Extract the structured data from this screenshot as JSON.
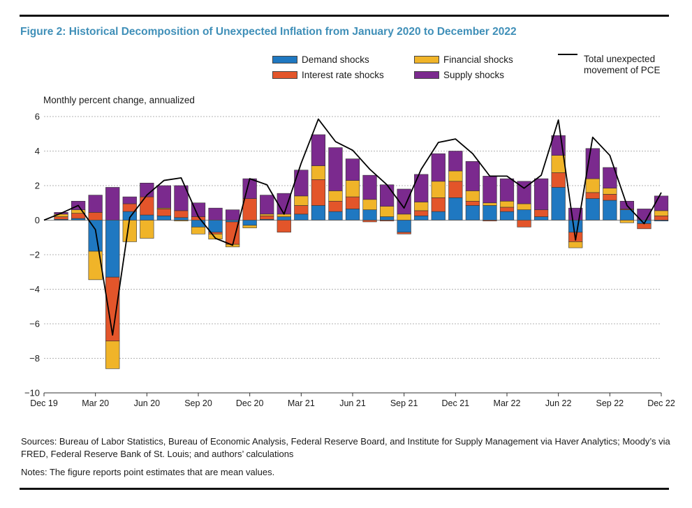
{
  "title": "Figure 2: Historical Decomposition of Unexpected Inflation from January 2020 to December 2022",
  "y_axis_title": "Monthly percent change, annualized",
  "legend": {
    "demand": "Demand shocks",
    "interest": "Interest rate shocks",
    "financial": "Financial shocks",
    "supply": "Supply shocks",
    "total": "Total unexpected movement of PCE"
  },
  "colors": {
    "demand": "#1f78c1",
    "interest": "#e3552a",
    "financial": "#f0b429",
    "supply": "#7b2a8e",
    "total": "#000000",
    "title": "#3f8fb8"
  },
  "sources": "Sources: Bureau of Labor Statistics, Bureau of Economic Analysis, Federal Reserve Board, and Institute for Supply Management via Haver Analytics; Moody’s via FRED, Federal Reserve Bank of St. Louis; and authors’ calculations",
  "notes": "Notes: The figure reports point estimates that are mean values.",
  "chart_data": {
    "type": "bar",
    "stacked": true,
    "ylim": [
      -10,
      6
    ],
    "yticks": [
      "6",
      "4",
      "2",
      "0",
      "−2",
      "−4",
      "−6",
      "−8",
      "−10"
    ],
    "ytick_values": [
      6,
      4,
      2,
      0,
      -2,
      -4,
      -6,
      -8,
      -10
    ],
    "xticks": [
      "Dec 19",
      "Mar 20",
      "Jun 20",
      "Sep 20",
      "Dec 20",
      "Mar 21",
      "Jun 21",
      "Sep 21",
      "Dec 21",
      "Mar 22",
      "Jun 22",
      "Sep 22",
      "Dec 22"
    ],
    "grid": true,
    "legend_position": "top",
    "categories": [
      "Jan 20",
      "Feb 20",
      "Mar 20",
      "Apr 20",
      "May 20",
      "Jun 20",
      "Jul 20",
      "Aug 20",
      "Sep 20",
      "Oct 20",
      "Nov 20",
      "Dec 20",
      "Jan 21",
      "Feb 21",
      "Mar 21",
      "Apr 21",
      "May 21",
      "Jun 21",
      "Jul 21",
      "Aug 21",
      "Sep 21",
      "Oct 21",
      "Nov 21",
      "Dec 21",
      "Jan 22",
      "Feb 22",
      "Mar 22",
      "Apr 22",
      "May 22",
      "Jun 22",
      "Jul 22",
      "Aug 22",
      "Sep 22",
      "Oct 22",
      "Nov 22",
      "Dec 22"
    ],
    "series": [
      {
        "name": "Demand shocks",
        "key": "demand",
        "values": [
          0.05,
          0.1,
          -1.8,
          -3.3,
          0.5,
          0.3,
          0.25,
          0.15,
          -0.4,
          -0.7,
          -0.1,
          -0.3,
          0.05,
          0.2,
          0.35,
          0.85,
          0.5,
          0.65,
          0.6,
          0.2,
          -0.7,
          0.25,
          0.5,
          1.3,
          0.85,
          0.85,
          0.5,
          0.6,
          0.2,
          1.9,
          -0.7,
          1.25,
          1.15,
          0.6,
          -0.2,
          -0.05
        ]
      },
      {
        "name": "Interest rate shocks",
        "key": "interest",
        "values": [
          0.15,
          0.3,
          0.45,
          -3.7,
          0.45,
          1.05,
          0.4,
          0.4,
          0.2,
          -0.1,
          -1.3,
          1.25,
          0.2,
          -0.7,
          0.5,
          1.5,
          0.6,
          0.7,
          -0.1,
          -0.05,
          -0.1,
          0.3,
          0.8,
          0.95,
          0.25,
          -0.05,
          0.25,
          -0.4,
          0.4,
          0.85,
          -0.55,
          0.35,
          0.35,
          0.05,
          -0.3,
          0.25
        ]
      },
      {
        "name": "Financial shocks",
        "key": "financial",
        "values": [
          0.15,
          0.2,
          -1.65,
          -1.6,
          -1.25,
          -1.05,
          0.05,
          -0.05,
          -0.4,
          -0.3,
          -0.15,
          -0.15,
          0.1,
          0.15,
          0.55,
          0.8,
          0.6,
          0.95,
          0.6,
          0.6,
          0.35,
          0.5,
          0.95,
          0.6,
          0.6,
          0.15,
          0.35,
          0.35,
          0.0,
          1.0,
          -0.35,
          0.8,
          0.35,
          -0.15,
          0.0,
          0.3
        ]
      },
      {
        "name": "Supply shocks",
        "key": "supply",
        "values": [
          0.1,
          0.5,
          1.0,
          1.9,
          0.4,
          0.8,
          1.3,
          1.45,
          0.8,
          0.7,
          0.6,
          1.15,
          1.1,
          1.2,
          1.5,
          1.8,
          2.5,
          1.25,
          1.4,
          1.25,
          1.45,
          1.6,
          1.6,
          1.15,
          1.7,
          1.55,
          1.3,
          1.3,
          1.8,
          1.15,
          0.7,
          1.75,
          1.2,
          0.45,
          0.65,
          0.85
        ]
      },
      {
        "name": "Total unexpected movement of PCE",
        "key": "total",
        "type": "line",
        "x_start_value": 0,
        "values": [
          0.4,
          0.85,
          -0.55,
          -6.65,
          0.15,
          1.45,
          2.3,
          2.45,
          0.2,
          -1.05,
          -1.45,
          2.4,
          2.05,
          0.35,
          3.3,
          5.85,
          4.55,
          4.05,
          2.95,
          2.05,
          0.7,
          2.95,
          4.5,
          4.7,
          3.85,
          2.55,
          2.55,
          1.85,
          2.6,
          5.8,
          -1.15,
          4.8,
          3.75,
          0.85,
          -0.2,
          1.6
        ]
      }
    ]
  }
}
